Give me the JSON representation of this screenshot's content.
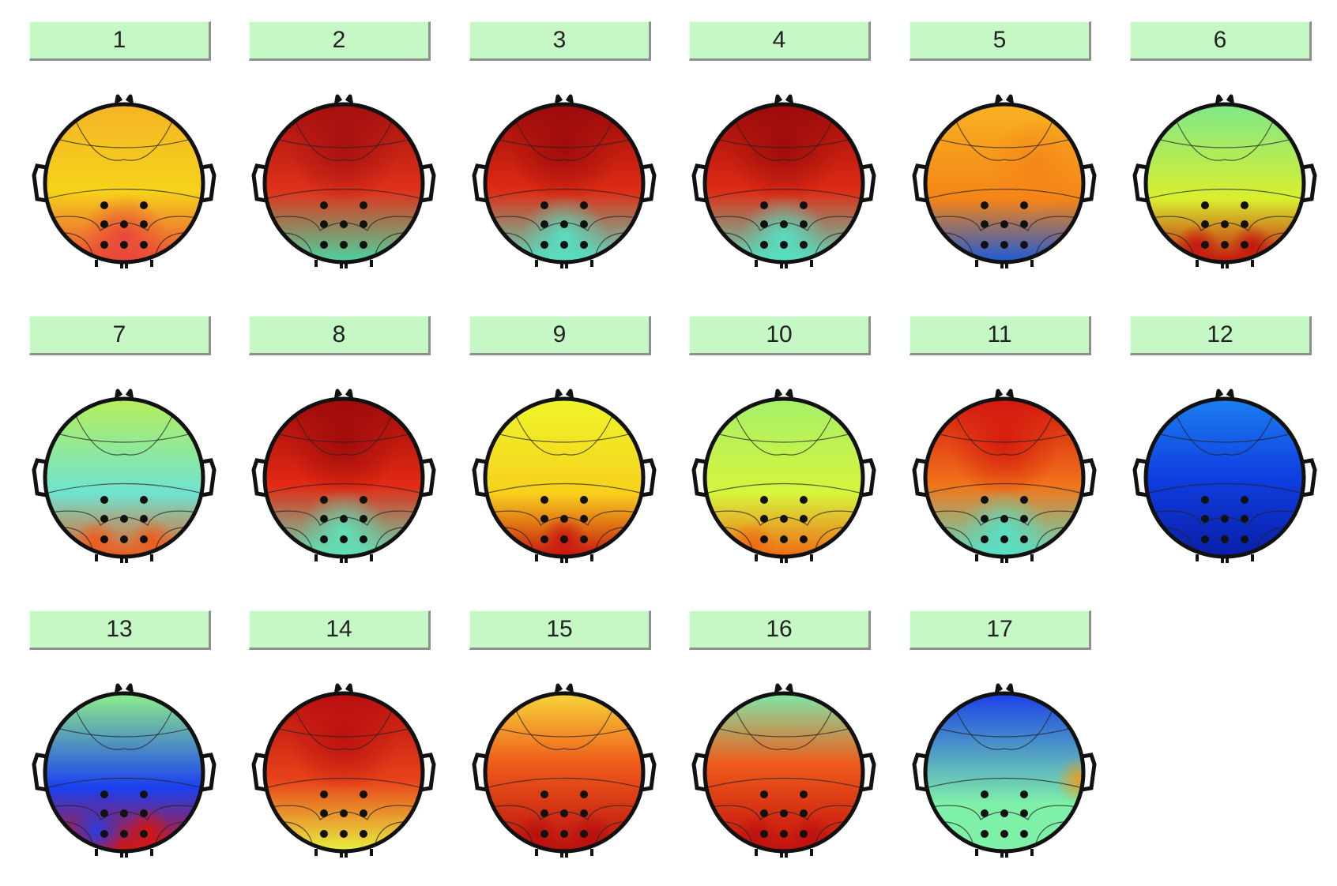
{
  "components": [
    {
      "label": "1",
      "colors": [
        "#f6d31a",
        "#f4b427",
        "#e9443a"
      ],
      "pattern": "front-warm-rear-cool"
    },
    {
      "label": "2",
      "colors": [
        "#e0321a",
        "#a50f0f",
        "#4ad6a0"
      ],
      "pattern": "front-red"
    },
    {
      "label": "3",
      "colors": [
        "#e02c14",
        "#9b0a0a",
        "#54e2c5"
      ],
      "pattern": "front-red-rear-cyan"
    },
    {
      "label": "4",
      "colors": [
        "#e02c14",
        "#9b0a0a",
        "#54e2c5"
      ],
      "pattern": "front-red-rear-cyan"
    },
    {
      "label": "5",
      "colors": [
        "#f8b223",
        "#f58417",
        "#1a5ad8"
      ],
      "pattern": "orange-rear-blue"
    },
    {
      "label": "6",
      "colors": [
        "#7fe88a",
        "#d9ef2f",
        "#c3140e"
      ],
      "pattern": "green-rear-red-pair"
    },
    {
      "label": "7",
      "colors": [
        "#b6ef5a",
        "#6fe3d1",
        "#ef5a1a"
      ],
      "pattern": "green-rear-red-pair"
    },
    {
      "label": "8",
      "colors": [
        "#e42a14",
        "#9e0a0a",
        "#5de4b9"
      ],
      "pattern": "front-red-rear-cyan"
    },
    {
      "label": "9",
      "colors": [
        "#eef62a",
        "#f8d01c",
        "#c71410"
      ],
      "pattern": "yellow-rear-red"
    },
    {
      "label": "10",
      "colors": [
        "#a6ef6a",
        "#d7f53c",
        "#f06a15"
      ],
      "pattern": "green-rear-mixed"
    },
    {
      "label": "11",
      "colors": [
        "#f2751a",
        "#d4170f",
        "#55e1c9"
      ],
      "pattern": "front-red-rear-cyan"
    },
    {
      "label": "12",
      "colors": [
        "#0f3ee0",
        "#1c7ff0",
        "#0a1ea8"
      ],
      "pattern": "blue"
    },
    {
      "label": "13",
      "colors": [
        "#8ef08a",
        "#1a3ff0",
        "#d61510"
      ],
      "pattern": "green-rear-blue-red"
    },
    {
      "label": "14",
      "colors": [
        "#e8421a",
        "#b80f0f",
        "#e8f040"
      ],
      "pattern": "front-red"
    },
    {
      "label": "15",
      "colors": [
        "#ef5a1a",
        "#f7d63a",
        "#b80f0f"
      ],
      "pattern": "banded-orange"
    },
    {
      "label": "16",
      "colors": [
        "#ef5a1a",
        "#7fe8a8",
        "#c0100f"
      ],
      "pattern": "banded-orange"
    },
    {
      "label": "17",
      "colors": [
        "#1c3fe8",
        "#7ff0a8",
        "#f29a1a"
      ],
      "pattern": "blue-left-warm-right"
    }
  ]
}
